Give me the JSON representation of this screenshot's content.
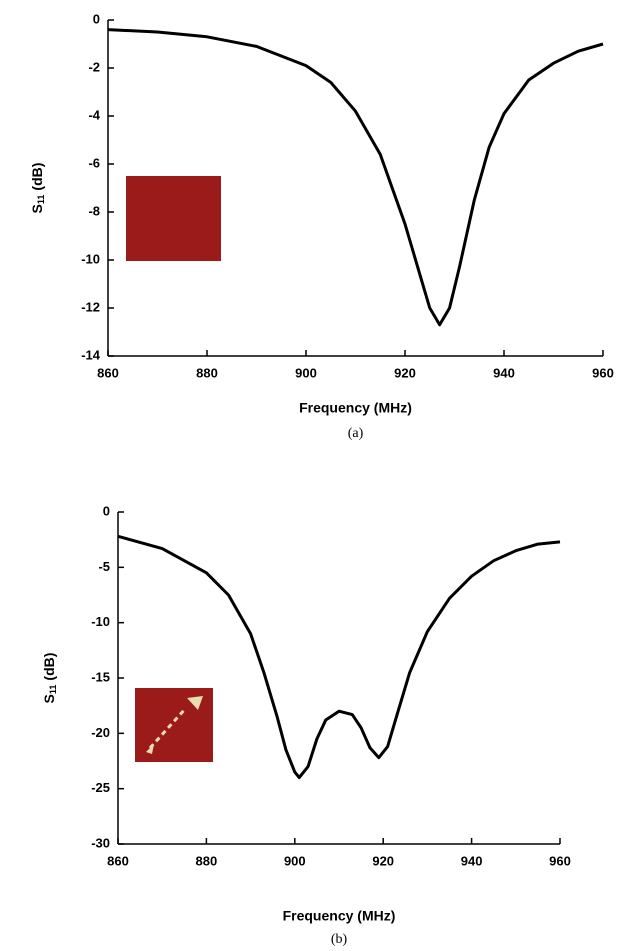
{
  "chart_data": [
    {
      "type": "line",
      "caption": "(a)",
      "xlabel": "Frequency (MHz)",
      "ylabel_base": "S",
      "ylabel_sub": "11",
      "ylabel_unit": "(dB)",
      "xlim": [
        860,
        960
      ],
      "ylim": [
        -14,
        0
      ],
      "xticks": [
        860,
        880,
        900,
        920,
        940,
        960
      ],
      "yticks": [
        -14,
        -12,
        -10,
        -8,
        -6,
        -4,
        -2,
        0
      ],
      "series": [
        {
          "color": "#000000",
          "x": [
            860,
            870,
            880,
            890,
            900,
            905,
            910,
            915,
            920,
            923,
            925,
            927,
            929,
            931,
            934,
            937,
            940,
            945,
            950,
            955,
            960
          ],
          "values": [
            -0.4,
            -0.5,
            -0.7,
            -1.1,
            -1.9,
            -2.6,
            -3.8,
            -5.6,
            -8.5,
            -10.6,
            -12.0,
            -12.7,
            -12.0,
            -10.3,
            -7.5,
            -5.3,
            -3.9,
            -2.5,
            -1.8,
            -1.3,
            -1.0
          ]
        }
      ]
    },
    {
      "type": "line",
      "caption": "(b)",
      "xlabel": "Frequency (MHz)",
      "ylabel_base": "S",
      "ylabel_sub": "11",
      "ylabel_unit": "(dB)",
      "xlim": [
        860,
        960
      ],
      "ylim": [
        -30,
        0
      ],
      "xticks": [
        860,
        880,
        900,
        920,
        940,
        960
      ],
      "yticks": [
        -30,
        -25,
        -20,
        -15,
        -10,
        -5,
        0
      ],
      "series": [
        {
          "color": "#000000",
          "x": [
            860,
            870,
            880,
            885,
            890,
            893,
            896,
            898,
            900,
            901,
            903,
            905,
            907,
            910,
            913,
            915,
            917,
            919,
            921,
            923,
            926,
            930,
            935,
            940,
            945,
            950,
            955,
            960
          ],
          "values": [
            -2.2,
            -3.3,
            -5.5,
            -7.5,
            -11.0,
            -14.5,
            -18.5,
            -21.5,
            -23.5,
            -24.0,
            -23.0,
            -20.5,
            -18.8,
            -18.0,
            -18.3,
            -19.5,
            -21.3,
            -22.2,
            -21.2,
            -18.5,
            -14.5,
            -10.8,
            -7.8,
            -5.8,
            -4.4,
            -3.5,
            -2.9,
            -2.7
          ]
        }
      ]
    }
  ]
}
